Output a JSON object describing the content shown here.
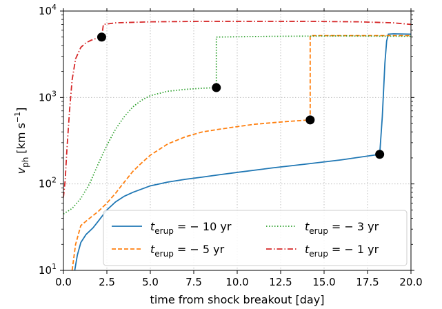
{
  "chart_data": {
    "type": "line",
    "xlabel": "time from shock breakout [day]",
    "ylabel": {
      "base": "v",
      "sub": "ph",
      "rest": " [km s",
      "sup": "−1",
      "end": "]"
    },
    "xlim": [
      0,
      20
    ],
    "ylim": [
      10,
      10000
    ],
    "yscale": "log",
    "grid": true,
    "legend_position": "lower-right",
    "x_ticks": [
      0,
      2.5,
      5,
      7.5,
      10,
      12.5,
      15,
      17.5,
      20
    ],
    "x_tick_labels": [
      "0.0",
      "2.5",
      "5.0",
      "7.5",
      "10.0",
      "12.5",
      "15.0",
      "17.5",
      "20.0"
    ],
    "y_ticks": [
      10,
      100,
      1000,
      10000
    ],
    "y_tick_labels": [
      {
        "base": "10",
        "exp": "1"
      },
      {
        "base": "10",
        "exp": "2"
      },
      {
        "base": "10",
        "exp": "3"
      },
      {
        "base": "10",
        "exp": "4"
      }
    ],
    "series": [
      {
        "name": {
          "pre": "t",
          "sub": "erup",
          "post": " = − 10 yr"
        },
        "color": "#1f77b4",
        "linestyle": "solid",
        "marker_point": [
          18.2,
          220
        ],
        "x": [
          0.65,
          0.8,
          1.0,
          1.3,
          1.7,
          2.0,
          2.5,
          3.0,
          3.5,
          4.0,
          5.0,
          6.0,
          7.0,
          8.0,
          9.0,
          10.0,
          12.0,
          14.0,
          16.0,
          18.2,
          18.35,
          18.5,
          18.6,
          18.7,
          19.0,
          20.0
        ],
        "y": [
          10,
          15,
          21,
          26,
          31,
          37,
          50,
          62,
          72,
          80,
          95,
          105,
          113,
          120,
          128,
          136,
          153,
          170,
          190,
          220,
          600,
          2500,
          4500,
          5400,
          5450,
          5400
        ]
      },
      {
        "name": {
          "pre": "t",
          "sub": "erup",
          "post": " = − 5 yr"
        },
        "color": "#ff7f0e",
        "linestyle": "dashed",
        "marker_point": [
          14.2,
          550
        ],
        "x": [
          0.5,
          0.7,
          1.0,
          1.5,
          2.0,
          2.5,
          3.0,
          3.5,
          4.0,
          4.5,
          5.0,
          6.0,
          7.0,
          8.0,
          9.0,
          10.0,
          11.0,
          12.0,
          13.0,
          14.2,
          14.2,
          16.0,
          20.0
        ],
        "y": [
          10,
          20,
          33,
          40,
          48,
          60,
          78,
          105,
          140,
          175,
          215,
          290,
          350,
          400,
          430,
          460,
          490,
          510,
          530,
          550,
          5200,
          5200,
          5200
        ]
      },
      {
        "name": {
          "pre": "t",
          "sub": "erup",
          "post": " = − 3 yr"
        },
        "color": "#2ca02c",
        "linestyle": "dotted",
        "marker_point": [
          8.8,
          1300
        ],
        "x": [
          0.0,
          0.5,
          1.0,
          1.5,
          2.0,
          2.5,
          3.0,
          3.5,
          4.0,
          4.5,
          5.0,
          6.0,
          7.0,
          8.0,
          8.8,
          8.8,
          12.0,
          16.0,
          20.0
        ],
        "y": [
          45,
          52,
          68,
          100,
          170,
          280,
          430,
          600,
          780,
          930,
          1050,
          1180,
          1240,
          1280,
          1300,
          5000,
          5100,
          5150,
          5100
        ]
      },
      {
        "name": {
          "pre": "t",
          "sub": "erup",
          "post": " = − 1 yr"
        },
        "color": "#d62728",
        "linestyle": "dashdot",
        "marker_point": [
          2.2,
          5000
        ],
        "x": [
          0.0,
          0.1,
          0.2,
          0.35,
          0.5,
          0.7,
          1.0,
          1.3,
          1.6,
          2.0,
          2.2,
          2.3,
          3.0,
          5.0,
          8.0,
          11.0,
          14.0,
          17.0,
          19.0,
          20.0
        ],
        "y": [
          70,
          110,
          250,
          700,
          1600,
          2800,
          3800,
          4300,
          4600,
          4900,
          5000,
          7000,
          7300,
          7500,
          7600,
          7600,
          7600,
          7500,
          7300,
          7000
        ]
      }
    ]
  }
}
